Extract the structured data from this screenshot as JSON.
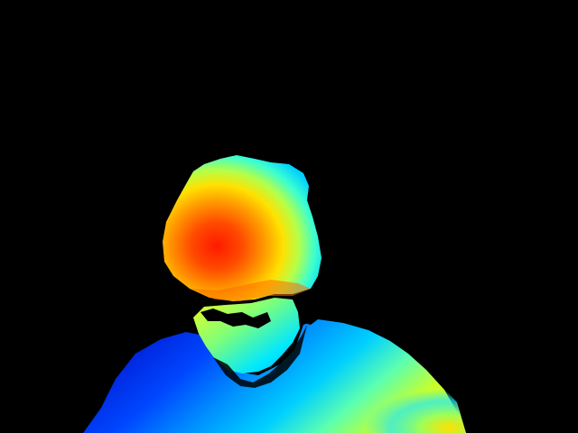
{
  "image": {
    "kind": "depth-map",
    "colormap": "jet",
    "background_color": "#000000",
    "palette": {
      "near": "#ff1a00",
      "near_mid": "#ff7a00",
      "mid": "#ffff00",
      "mid_far": "#00ffff",
      "far": "#0044ff",
      "farthest": "#000a9f"
    }
  }
}
